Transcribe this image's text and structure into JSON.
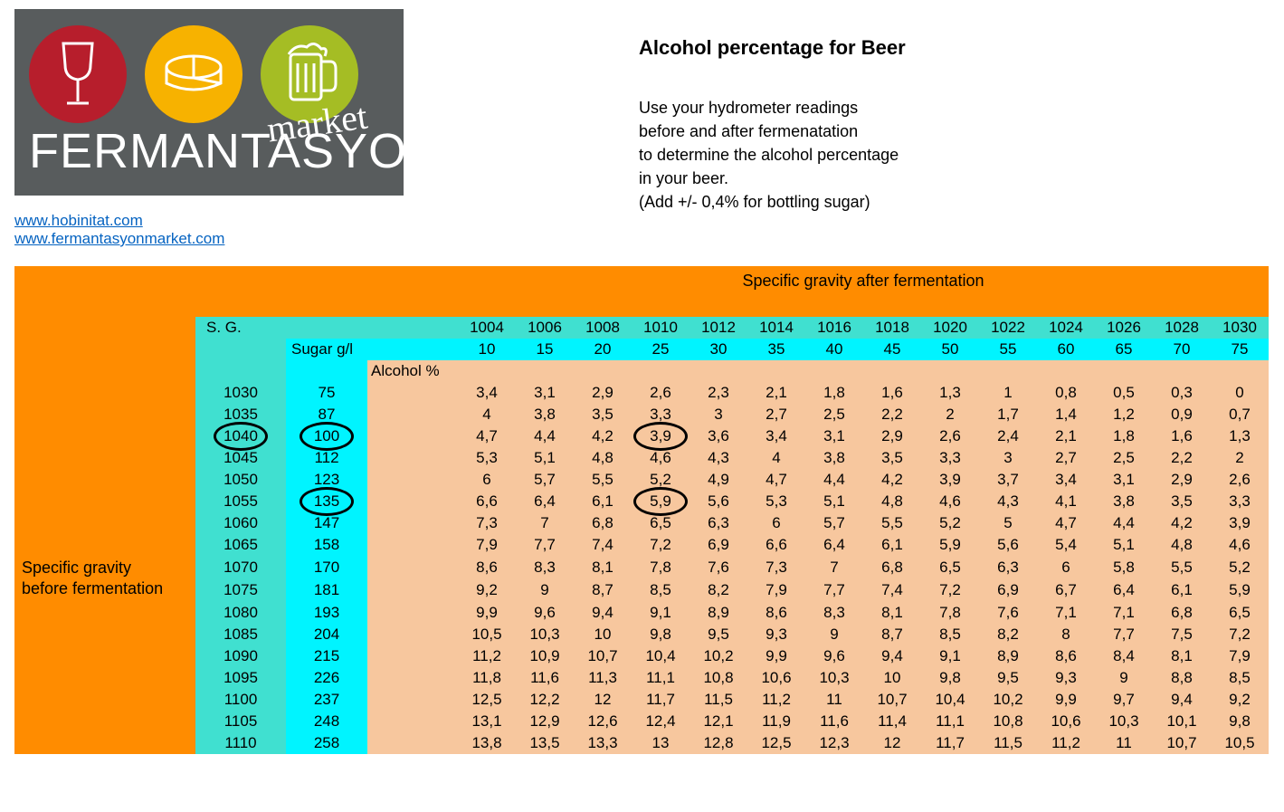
{
  "brand": {
    "word": "FERMANTASYON",
    "script": "market",
    "circle_colors": [
      "#b71e2c",
      "#f7b200",
      "#a5bd24"
    ],
    "logo_bg": "#585c5d"
  },
  "links": {
    "l1": "www.hobinitat.com",
    "l2": "www.fermantasyonmarket.com"
  },
  "title": "Alcohol percentage for Beer",
  "description_lines": {
    "d1": "Use your hydrometer readings",
    "d2": "before and after fermenatation",
    "d3": "to determine the alcohol percentage",
    "d4": "in your beer.",
    "d5": "(Add +/- 0,4% for bottling sugar)"
  },
  "table": {
    "header_after": "Specific gravity after fermentation",
    "sg_label": "S. G.",
    "sugar_label": "Sugar g/l",
    "alcohol_label": "Alcohol %",
    "side_label": "Specific gravity before fermentation",
    "col_sg": [
      "1004",
      "1006",
      "1008",
      "1010",
      "1012",
      "1014",
      "1016",
      "1018",
      "1020",
      "1022",
      "1024",
      "1026",
      "1028",
      "1030"
    ],
    "col_sugar": [
      "10",
      "15",
      "20",
      "25",
      "30",
      "35",
      "40",
      "45",
      "50",
      "55",
      "60",
      "65",
      "70",
      "75"
    ],
    "rows": [
      {
        "sg": "1030",
        "sugar": "75",
        "v": [
          "3,4",
          "3,1",
          "2,9",
          "2,6",
          "2,3",
          "2,1",
          "1,8",
          "1,6",
          "1,3",
          "1",
          "0,8",
          "0,5",
          "0,3",
          "0"
        ]
      },
      {
        "sg": "1035",
        "sugar": "87",
        "v": [
          "4",
          "3,8",
          "3,5",
          "3,3",
          "3",
          "2,7",
          "2,5",
          "2,2",
          "2",
          "1,7",
          "1,4",
          "1,2",
          "0,9",
          "0,7"
        ]
      },
      {
        "sg": "1040",
        "sugar": "100",
        "v": [
          "4,7",
          "4,4",
          "4,2",
          "3,9",
          "3,6",
          "3,4",
          "3,1",
          "2,9",
          "2,6",
          "2,4",
          "2,1",
          "1,8",
          "1,6",
          "1,3"
        ]
      },
      {
        "sg": "1045",
        "sugar": "112",
        "v": [
          "5,3",
          "5,1",
          "4,8",
          "4,6",
          "4,3",
          "4",
          "3,8",
          "3,5",
          "3,3",
          "3",
          "2,7",
          "2,5",
          "2,2",
          "2"
        ]
      },
      {
        "sg": "1050",
        "sugar": "123",
        "v": [
          "6",
          "5,7",
          "5,5",
          "5,2",
          "4,9",
          "4,7",
          "4,4",
          "4,2",
          "3,9",
          "3,7",
          "3,4",
          "3,1",
          "2,9",
          "2,6"
        ]
      },
      {
        "sg": "1055",
        "sugar": "135",
        "v": [
          "6,6",
          "6,4",
          "6,1",
          "5,9",
          "5,6",
          "5,3",
          "5,1",
          "4,8",
          "4,6",
          "4,3",
          "4,1",
          "3,8",
          "3,5",
          "3,3"
        ]
      },
      {
        "sg": "1060",
        "sugar": "147",
        "v": [
          "7,3",
          "7",
          "6,8",
          "6,5",
          "6,3",
          "6",
          "5,7",
          "5,5",
          "5,2",
          "5",
          "4,7",
          "4,4",
          "4,2",
          "3,9"
        ]
      },
      {
        "sg": "1065",
        "sugar": "158",
        "v": [
          "7,9",
          "7,7",
          "7,4",
          "7,2",
          "6,9",
          "6,6",
          "6,4",
          "6,1",
          "5,9",
          "5,6",
          "5,4",
          "5,1",
          "4,8",
          "4,6"
        ]
      },
      {
        "sg": "1070",
        "sugar": "170",
        "v": [
          "8,6",
          "8,3",
          "8,1",
          "7,8",
          "7,6",
          "7,3",
          "7",
          "6,8",
          "6,5",
          "6,3",
          "6",
          "5,8",
          "5,5",
          "5,2"
        ]
      },
      {
        "sg": "1075",
        "sugar": "181",
        "v": [
          "9,2",
          "9",
          "8,7",
          "8,5",
          "8,2",
          "7,9",
          "7,7",
          "7,4",
          "7,2",
          "6,9",
          "6,7",
          "6,4",
          "6,1",
          "5,9"
        ]
      },
      {
        "sg": "1080",
        "sugar": "193",
        "v": [
          "9,9",
          "9,6",
          "9,4",
          "9,1",
          "8,9",
          "8,6",
          "8,3",
          "8,1",
          "7,8",
          "7,6",
          "7,1",
          "7,1",
          "6,8",
          "6,5"
        ]
      },
      {
        "sg": "1085",
        "sugar": "204",
        "v": [
          "10,5",
          "10,3",
          "10",
          "9,8",
          "9,5",
          "9,3",
          "9",
          "8,7",
          "8,5",
          "8,2",
          "8",
          "7,7",
          "7,5",
          "7,2"
        ]
      },
      {
        "sg": "1090",
        "sugar": "215",
        "v": [
          "11,2",
          "10,9",
          "10,7",
          "10,4",
          "10,2",
          "9,9",
          "9,6",
          "9,4",
          "9,1",
          "8,9",
          "8,6",
          "8,4",
          "8,1",
          "7,9"
        ]
      },
      {
        "sg": "1095",
        "sugar": "226",
        "v": [
          "11,8",
          "11,6",
          "11,3",
          "11,1",
          "10,8",
          "10,6",
          "10,3",
          "10",
          "9,8",
          "9,5",
          "9,3",
          "9",
          "8,8",
          "8,5"
        ]
      },
      {
        "sg": "1100",
        "sugar": "237",
        "v": [
          "12,5",
          "12,2",
          "12",
          "11,7",
          "11,5",
          "11,2",
          "11",
          "10,7",
          "10,4",
          "10,2",
          "9,9",
          "9,7",
          "9,4",
          "9,2"
        ]
      },
      {
        "sg": "1105",
        "sugar": "248",
        "v": [
          "13,1",
          "12,9",
          "12,6",
          "12,4",
          "12,1",
          "11,9",
          "11,6",
          "11,4",
          "11,1",
          "10,8",
          "10,6",
          "10,3",
          "10,1",
          "9,8"
        ]
      },
      {
        "sg": "1110",
        "sugar": "258",
        "v": [
          "13,8",
          "13,5",
          "13,3",
          "13",
          "12,8",
          "12,5",
          "12,3",
          "12",
          "11,7",
          "11,5",
          "11,2",
          "11",
          "10,7",
          "10,5"
        ]
      }
    ],
    "circled": [
      {
        "row": 2,
        "cell": "sg"
      },
      {
        "row": 2,
        "cell": "sugar"
      },
      {
        "row": 2,
        "cell": 3
      },
      {
        "row": 5,
        "cell": "sugar"
      },
      {
        "row": 5,
        "cell": 3
      }
    ],
    "colors": {
      "header_orange": "#ff8c00",
      "teal": "#40e0d0",
      "cyan": "#00f4ff",
      "peach": "#f7c79e"
    }
  }
}
